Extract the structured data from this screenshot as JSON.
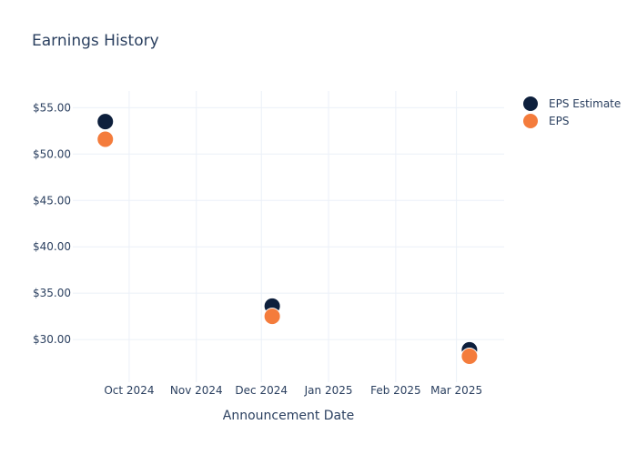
{
  "chart_data": {
    "type": "scatter",
    "title": "Earnings History",
    "xlabel": "Announcement Date",
    "ylabel": "",
    "x_ticks": [
      {
        "label": "Oct 2024",
        "date": "2024-10-01"
      },
      {
        "label": "Nov 2024",
        "date": "2024-11-01"
      },
      {
        "label": "Dec 2024",
        "date": "2024-12-01"
      },
      {
        "label": "Jan 2025",
        "date": "2025-01-01"
      },
      {
        "label": "Feb 2025",
        "date": "2025-02-01"
      },
      {
        "label": "Mar 2025",
        "date": "2025-03-01"
      }
    ],
    "y_ticks": [
      {
        "label": "$30.00",
        "value": 30
      },
      {
        "label": "$35.00",
        "value": 35
      },
      {
        "label": "$40.00",
        "value": 40
      },
      {
        "label": "$45.00",
        "value": 45
      },
      {
        "label": "$50.00",
        "value": 50
      },
      {
        "label": "$55.00",
        "value": 55
      }
    ],
    "xlim": [
      "2024-09-05",
      "2025-03-23"
    ],
    "ylim": [
      25.4,
      56.8
    ],
    "grid": true,
    "legend_position": "top-right",
    "series": [
      {
        "name": "EPS Estimate",
        "color": "#0d1f3c",
        "points": [
          {
            "x": "2024-09-20",
            "y": 53.5
          },
          {
            "x": "2024-12-06",
            "y": 33.6
          },
          {
            "x": "2025-03-07",
            "y": 28.9
          }
        ]
      },
      {
        "name": "EPS",
        "color": "#f47c3c",
        "points": [
          {
            "x": "2024-09-20",
            "y": 51.6
          },
          {
            "x": "2024-12-06",
            "y": 32.5
          },
          {
            "x": "2025-03-07",
            "y": 28.2
          }
        ]
      }
    ]
  }
}
